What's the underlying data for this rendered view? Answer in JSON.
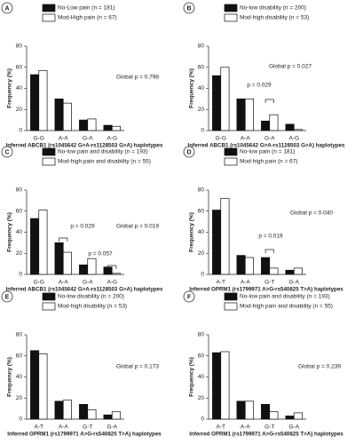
{
  "chart_data": [
    {
      "type": "bar",
      "label": "A",
      "ylabel": "Frequency (%)",
      "xlabel": "Inferred ABCB1 (rs1045642 G>A-rs1128503 G>A) haplotypes",
      "categories": [
        "G-G",
        "A-A",
        "G-A",
        "A-G"
      ],
      "ylim": [
        0,
        80
      ],
      "yticks": [
        0,
        20,
        40,
        60,
        80
      ],
      "series": [
        {
          "name": "No-Low pain (n = 181)",
          "color": "#111111",
          "values": [
            53,
            30,
            10,
            5
          ]
        },
        {
          "name": "Mod-High pain (n = 67)",
          "color": "#ffffff",
          "values": [
            57,
            26,
            11,
            4
          ]
        }
      ],
      "annotations": [
        "Global p = 0.798"
      ]
    },
    {
      "type": "bar",
      "label": "B",
      "ylabel": "Frequency (%)",
      "xlabel": "Inferred ABCB1 (rs1045642 G>A-rs1128503 G>A) haplotypes",
      "categories": [
        "G-G",
        "A-A",
        "G-A",
        "A-G"
      ],
      "ylim": [
        0,
        80
      ],
      "yticks": [
        0,
        20,
        40,
        60,
        80
      ],
      "series": [
        {
          "name": "No-low disability (n = 200)",
          "color": "#111111",
          "values": [
            52,
            30,
            9,
            6
          ]
        },
        {
          "name": "Mod-high disability (n = 53)",
          "color": "#ffffff",
          "values": [
            60,
            30,
            15,
            1
          ]
        }
      ],
      "annotations": [
        "Global p = 0.027",
        "p = 0.029"
      ]
    },
    {
      "type": "bar",
      "label": "C",
      "ylabel": "Frequency (%)",
      "xlabel": "Inferred ABCB1 (rs1045642 G>A-rs1128503 G>A) haplotypes",
      "categories": [
        "G-G",
        "A-A",
        "G-A",
        "A-G"
      ],
      "ylim": [
        0,
        80
      ],
      "yticks": [
        0,
        20,
        40,
        60,
        80
      ],
      "series": [
        {
          "name": "No-low pain and disability (n = 193)",
          "color": "#111111",
          "values": [
            53,
            30,
            9,
            7
          ]
        },
        {
          "name": "Mod-high pain and disability (n = 55)",
          "color": "#ffffff",
          "values": [
            61,
            21,
            15,
            1
          ]
        }
      ],
      "annotations": [
        "Global p = 0.019",
        "p = 0.029",
        "p = 0.057"
      ]
    },
    {
      "type": "bar",
      "label": "D",
      "ylabel": "Frequency (%)",
      "xlabel": "Inferred OPRM1 (rs1799971 A>G-rs540825 T>A) haplotypes",
      "categories": [
        "A-T",
        "A-A",
        "G-T",
        "G-A"
      ],
      "ylim": [
        0,
        80
      ],
      "yticks": [
        0,
        20,
        40,
        60,
        80
      ],
      "series": [
        {
          "name": "No-low pain (n = 181)",
          "color": "#111111",
          "values": [
            61,
            18,
            16,
            4
          ]
        },
        {
          "name": "Mod-high pain (n = 67)",
          "color": "#ffffff",
          "values": [
            72,
            16,
            6,
            6
          ]
        }
      ],
      "annotations": [
        "Global p = 0.040",
        "p = 0.019"
      ]
    },
    {
      "type": "bar",
      "label": "E",
      "ylabel": "Frequency (%)",
      "xlabel": "Inferred OPRM1 (rs1799971 A>G-rs540825 T>A) haplotypes",
      "categories": [
        "A-T",
        "A-A",
        "G-T",
        "G-A"
      ],
      "ylim": [
        0,
        80
      ],
      "yticks": [
        0,
        20,
        40,
        60,
        80
      ],
      "series": [
        {
          "name": "No-low disability (n = 200)",
          "color": "#111111",
          "values": [
            65,
            17,
            14,
            4
          ]
        },
        {
          "name": "Mod-high disability (n = 53)",
          "color": "#ffffff",
          "values": [
            62,
            18,
            9,
            7
          ]
        }
      ],
      "annotations": [
        "Global p = 0.173"
      ]
    },
    {
      "type": "bar",
      "label": "F",
      "ylabel": "Frequency (%)",
      "xlabel": "Inferred OPRM1 (rs1799971 A>G-rs540825 T>A) haplotypes",
      "categories": [
        "A-T",
        "A-A",
        "G-T",
        "G-A"
      ],
      "ylim": [
        0,
        80
      ],
      "yticks": [
        0,
        20,
        40,
        60,
        80
      ],
      "series": [
        {
          "name": "No-low pain and disability (n = 193)",
          "color": "#111111",
          "values": [
            63,
            17,
            14,
            3
          ]
        },
        {
          "name": "Mod-high pain and disability (n = 55)",
          "color": "#ffffff",
          "values": [
            64,
            17,
            7,
            6
          ]
        }
      ],
      "annotations": [
        "Global p = 0.239"
      ]
    }
  ]
}
